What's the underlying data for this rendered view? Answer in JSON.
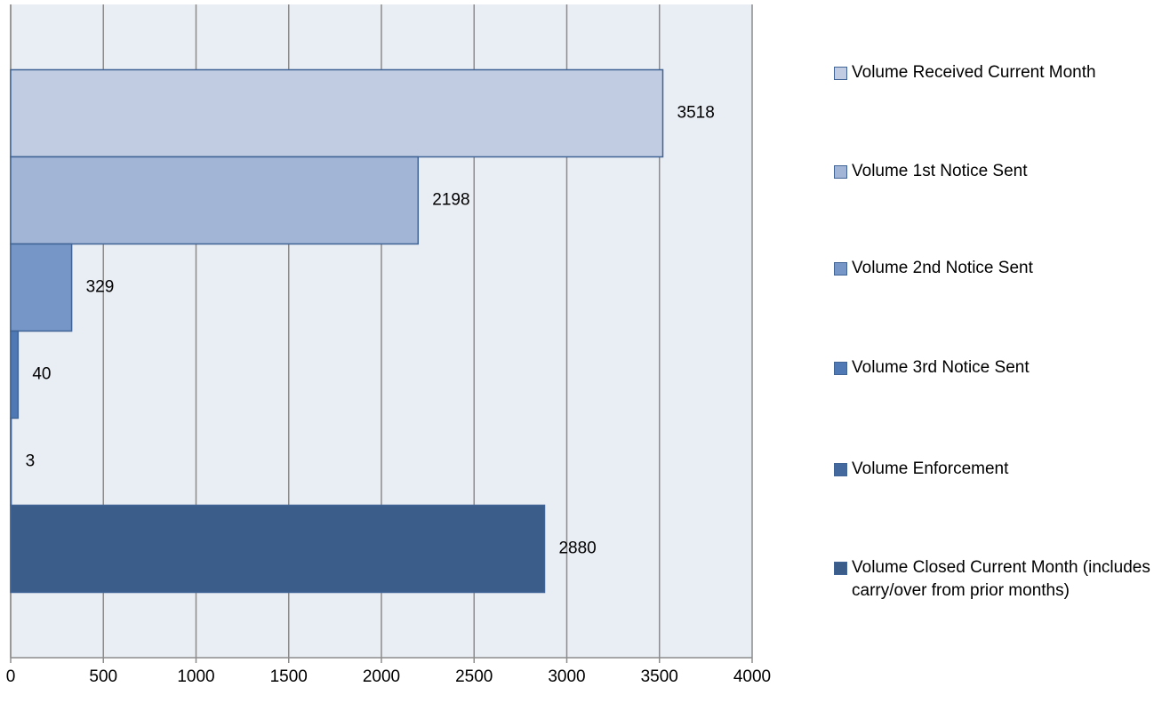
{
  "chart_data": {
    "type": "bar",
    "orientation": "horizontal",
    "categories": [
      null
    ],
    "series": [
      {
        "name": "Volume Received Current Month",
        "color": "#c1cbe1",
        "values": [
          3518
        ]
      },
      {
        "name": "Volume 1st Notice Sent",
        "color": "#a3b5d6",
        "values": [
          2198
        ]
      },
      {
        "name": "Volume 2nd Notice Sent",
        "color": "#7596c7",
        "values": [
          329
        ]
      },
      {
        "name": "Volume 3rd Notice Sent",
        "color": "#4f79b5",
        "values": [
          40
        ]
      },
      {
        "name": "Volume Enforcement",
        "color": "#44699e",
        "values": [
          3
        ]
      },
      {
        "name": "Volume Closed Current Month (includes carry/over from prior months)",
        "color": "#3a5d89",
        "values": [
          2880
        ]
      }
    ],
    "xlim": [
      0,
      4000
    ],
    "xticks": [
      0,
      500,
      1000,
      1500,
      2000,
      2500,
      3000,
      3500,
      4000
    ],
    "grid": true,
    "legend": "right"
  }
}
